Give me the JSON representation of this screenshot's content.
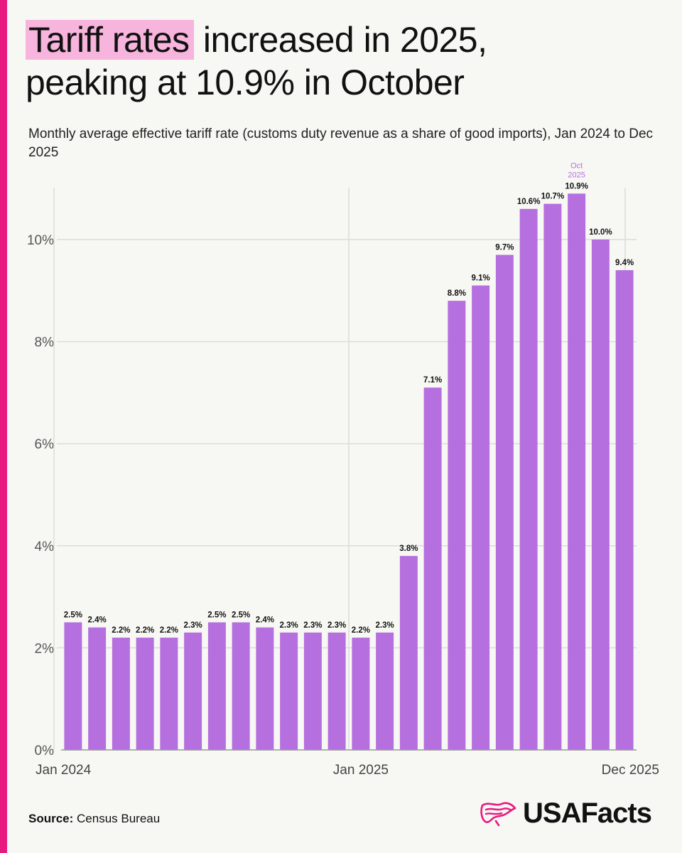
{
  "page": {
    "title_highlight": "Tariff rates",
    "title_rest_line1": " increased in 2025,",
    "title_line2": "peaking at 10.9% in October",
    "subtitle": "Monthly average effective tariff rate (customs duty revenue as a share of good imports), Jan 2024 to Dec 2025",
    "source_label": "Source:",
    "source_value": " Census Bureau",
    "logo_text": "USAFacts"
  },
  "colors": {
    "accent": "#e8197f",
    "highlight": "#f7b4dc",
    "bar": "#b56fdf",
    "peak_label": "#b56fdf"
  },
  "icons": {
    "logo": "usa-map-icon"
  },
  "chart_data": {
    "type": "bar",
    "title": "Tariff rates increased in 2025, peaking at 10.9% in October",
    "categories": [
      "Jan 2024",
      "Feb 2024",
      "Mar 2024",
      "Apr 2024",
      "May 2024",
      "Jun 2024",
      "Jul 2024",
      "Aug 2024",
      "Sep 2024",
      "Oct 2024",
      "Nov 2024",
      "Dec 2024",
      "Jan 2025",
      "Feb 2025",
      "Mar 2025",
      "Apr 2025",
      "May 2025",
      "Jun 2025",
      "Jul 2025",
      "Aug 2025",
      "Sep 2025",
      "Oct 2025",
      "Nov 2025",
      "Dec 2025"
    ],
    "values": [
      2.5,
      2.4,
      2.2,
      2.2,
      2.2,
      2.3,
      2.5,
      2.5,
      2.4,
      2.3,
      2.3,
      2.3,
      2.2,
      2.3,
      3.8,
      7.1,
      8.8,
      9.1,
      9.7,
      10.6,
      10.7,
      10.9,
      10.0,
      9.4
    ],
    "value_labels": [
      "2.5%",
      "2.4%",
      "2.2%",
      "2.2%",
      "2.2%",
      "2.3%",
      "2.5%",
      "2.5%",
      "2.4%",
      "2.3%",
      "2.3%",
      "2.3%",
      "2.2%",
      "2.3%",
      "3.8%",
      "7.1%",
      "8.8%",
      "9.1%",
      "9.7%",
      "10.6%",
      "10.7%",
      "10.9%",
      "10.0%",
      "9.4%"
    ],
    "y_ticks": [
      0,
      2,
      4,
      6,
      8,
      10
    ],
    "y_tick_labels": [
      "0%",
      "2%",
      "4%",
      "6%",
      "8%",
      "10%"
    ],
    "x_tick_labels": [
      {
        "index": 0,
        "label": "Jan 2024"
      },
      {
        "index": 12,
        "label": "Jan 2025"
      },
      {
        "index": 23,
        "label": "Dec 2025"
      }
    ],
    "annotation": {
      "index": 21,
      "lines": [
        "Oct",
        "2025"
      ]
    },
    "ylim": [
      0,
      11
    ],
    "xlabel": "",
    "ylabel": "",
    "grid": true
  }
}
